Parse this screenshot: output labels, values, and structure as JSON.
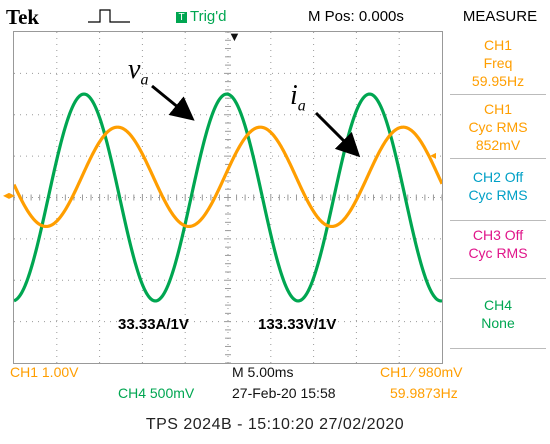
{
  "header": {
    "brand": "Tek",
    "trigger_status": "Trig'd",
    "position": "M Pos: 0.000s",
    "measure_title": "MEASURE"
  },
  "annotations": {
    "voltage_label_main": "v",
    "voltage_label_sub": "a",
    "current_label_main": "i",
    "current_label_sub": "a",
    "current_scale": "33.33A/1V",
    "voltage_scale": "133.33V/1V"
  },
  "measure_panel": [
    {
      "lines": [
        "CH1",
        "Freq",
        "59.95Hz"
      ],
      "color": "#ff9e00"
    },
    {
      "lines": [
        "CH1",
        "Cyc RMS",
        "852mV"
      ],
      "color": "#ff9e00"
    },
    {
      "lines": [
        "CH2 Off",
        "Cyc RMS"
      ],
      "color": "#00a0c6"
    },
    {
      "lines": [
        "CH3 Off",
        "Cyc RMS"
      ],
      "color": "#e0158a"
    },
    {
      "lines": [
        "CH4",
        "None"
      ],
      "color": "#00a651"
    }
  ],
  "status_bar": {
    "ch1_scale": "CH1  1.00V",
    "ch4_scale": "CH4  500mV",
    "timebase": "M 5.00ms",
    "date_time": "27-Feb-20 15:58",
    "trigger_setting": "CH1 ⁄ 980mV",
    "trigger_freq": "59.9873Hz"
  },
  "caption": "TPS 2024B - 15:10:20  27/02/2020",
  "colors": {
    "ch1": "#ff9e00",
    "ch4": "#00a651",
    "grid": "#9a9a9a"
  },
  "waveforms": {
    "ch4_voltage": {
      "amplitude_div": 2.5,
      "frequency_hz": 59.95,
      "color": "#00a651"
    },
    "ch1_current": {
      "amplitude_div": 1.2,
      "frequency_hz": 59.95,
      "color": "#ff9e00"
    }
  }
}
